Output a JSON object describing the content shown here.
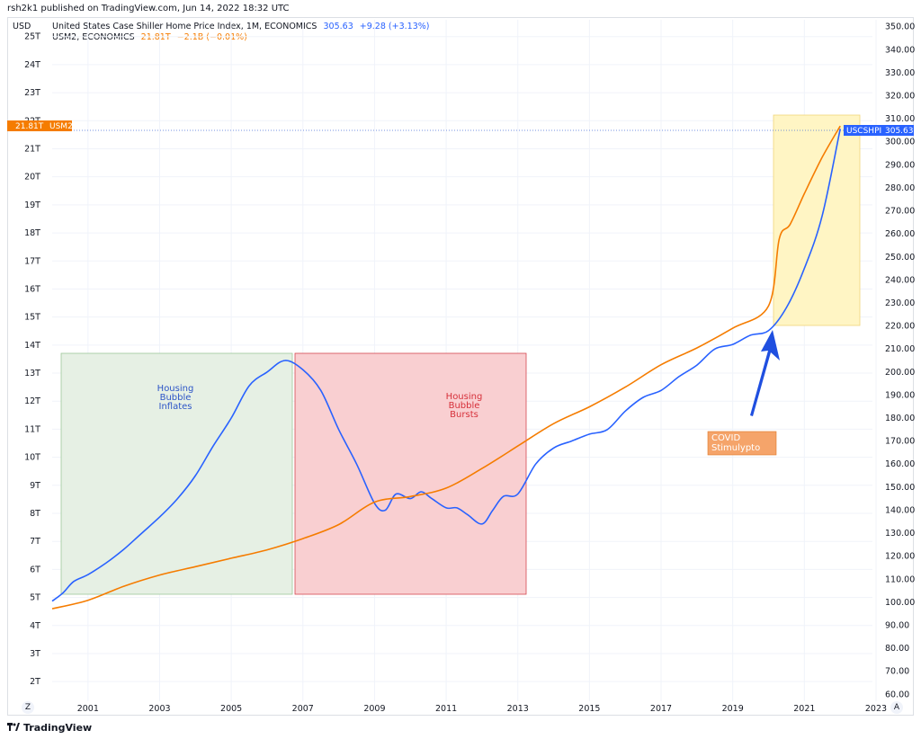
{
  "header": {
    "publish_caption": "rsh2k1 published on TradingView.com, Jun 14, 2022 18:32 UTC"
  },
  "left_axis_unit": "USD",
  "legend": {
    "series1": {
      "name": "United States Case Shiller Home Price Index, 1M, ECONOMICS",
      "value": "305.63",
      "change": "+9.28 (+3.13%)"
    },
    "series2": {
      "name": "USM2, ECONOMICS",
      "value": "21.81T",
      "change": "−2.1B (−0.01%)"
    }
  },
  "price_tags": {
    "usm2_value": "21.81T",
    "usm2_label": "USM2",
    "uscshpi_label": "USCSHPI",
    "uscshpi_value": "305.63"
  },
  "buttons": {
    "z": "Z",
    "a": "A"
  },
  "footer": {
    "brand": "TradingView"
  },
  "colors": {
    "hpi": "#2962ff",
    "m2": "#f57c00",
    "inflate_box": "#e6f0e4",
    "burst_box": "#f9cfd1",
    "covid_box": "#fff5c4",
    "covid_label_bg": "#f5a46a",
    "arrow": "#1f4fe0"
  },
  "annotations": {
    "inflate": [
      "Housing",
      "Bubble",
      "Inflates"
    ],
    "burst": [
      "Housing",
      "Bubble",
      "Bursts"
    ],
    "covid": [
      "COVID",
      "Stimulypto"
    ]
  },
  "chart_data": {
    "type": "line",
    "x_ticks": [
      "2001",
      "2003",
      "2005",
      "2007",
      "2009",
      "2011",
      "2013",
      "2015",
      "2017",
      "2019",
      "2021",
      "2023"
    ],
    "left_ticks": [
      "25T",
      "24T",
      "23T",
      "22T",
      "21T",
      "20T",
      "19T",
      "18T",
      "17T",
      "16T",
      "15T",
      "14T",
      "13T",
      "12T",
      "11T",
      "10T",
      "9T",
      "8T",
      "7T",
      "6T",
      "5T",
      "4T",
      "3T",
      "2T"
    ],
    "right_ticks": [
      "350.00",
      "340.00",
      "330.00",
      "320.00",
      "310.00",
      "300.00",
      "290.00",
      "280.00",
      "270.00",
      "260.00",
      "250.00",
      "240.00",
      "230.00",
      "220.00",
      "210.00",
      "200.00",
      "190.00",
      "180.00",
      "170.00",
      "160.00",
      "150.00",
      "140.00",
      "130.00",
      "120.00",
      "110.00",
      "100.00",
      "90.00",
      "80.00",
      "70.00",
      "60.00"
    ],
    "left_ylim": [
      1.3,
      25.6
    ],
    "right_ylim": [
      57,
      353
    ],
    "xlim": [
      2000.0,
      2022.9
    ],
    "series": [
      {
        "name": "USCSHPI",
        "axis": "right",
        "x": [
          2000.0,
          2000.3,
          2000.6,
          2001.0,
          2001.5,
          2002.0,
          2002.5,
          2003.0,
          2003.5,
          2004.0,
          2004.5,
          2005.0,
          2005.5,
          2006.0,
          2006.5,
          2007.0,
          2007.5,
          2008.0,
          2008.5,
          2009.0,
          2009.3,
          2009.6,
          2010.0,
          2010.3,
          2010.6,
          2011.0,
          2011.3,
          2011.6,
          2012.0,
          2012.3,
          2012.6,
          2013.0,
          2013.5,
          2014.0,
          2014.5,
          2015.0,
          2015.5,
          2016.0,
          2016.5,
          2017.0,
          2017.5,
          2018.0,
          2018.5,
          2019.0,
          2019.5,
          2020.0,
          2020.5,
          2021.0,
          2021.5,
          2022.0
        ],
        "y": [
          100.5,
          104.0,
          109.0,
          112.0,
          117.0,
          123.0,
          130.0,
          137.0,
          145.0,
          155.0,
          168.0,
          180.0,
          194.0,
          200.0,
          205.0,
          201.0,
          192.0,
          175.0,
          160.0,
          143.0,
          140.0,
          147.0,
          145.0,
          148.0,
          145.0,
          141.0,
          141.0,
          138.0,
          134.0,
          140.0,
          146.0,
          147.0,
          160.0,
          167.0,
          170.0,
          173.0,
          175.0,
          183.0,
          189.0,
          192.0,
          198.0,
          203.0,
          210.0,
          212.0,
          216.0,
          218.0,
          228.0,
          245.0,
          268.0,
          305.63
        ]
      },
      {
        "name": "USM2",
        "axis": "left",
        "x": [
          2000.0,
          2001.0,
          2002.0,
          2003.0,
          2004.0,
          2005.0,
          2006.0,
          2007.0,
          2008.0,
          2009.0,
          2010.0,
          2011.0,
          2012.0,
          2013.0,
          2014.0,
          2015.0,
          2016.0,
          2017.0,
          2018.0,
          2019.0,
          2020.0,
          2020.3,
          2020.6,
          2021.0,
          2021.5,
          2022.0
        ],
        "y": [
          4.6,
          4.9,
          5.4,
          5.8,
          6.1,
          6.4,
          6.7,
          7.1,
          7.6,
          8.4,
          8.6,
          8.9,
          9.6,
          10.4,
          11.2,
          11.8,
          12.5,
          13.3,
          13.9,
          14.6,
          15.4,
          17.8,
          18.3,
          19.4,
          20.7,
          21.81
        ]
      }
    ]
  }
}
